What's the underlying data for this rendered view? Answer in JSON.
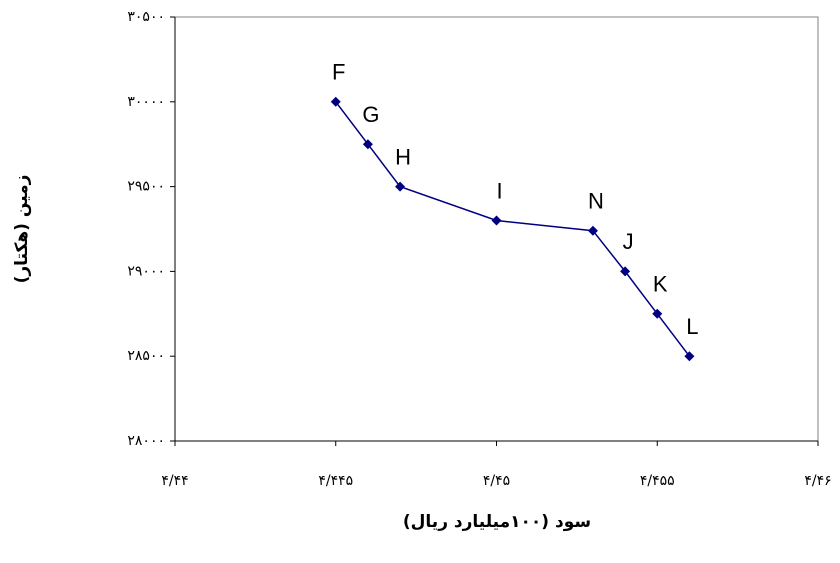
{
  "chart_data": {
    "type": "line",
    "x_label": "سود (۱۰۰میلیارد ریال)",
    "y_label": "زمین (هکتار)",
    "x": [
      4.445,
      4.446,
      4.447,
      4.45,
      4.453,
      4.454,
      4.455,
      4.456
    ],
    "labels": [
      "F",
      "G",
      "H",
      "I",
      "N",
      "J",
      "K",
      "L"
    ],
    "series": [
      {
        "color": "#000080",
        "values": [
          30000,
          29750,
          29500,
          29300,
          29240,
          29000,
          28750,
          28500
        ]
      }
    ],
    "xlim": [
      4.44,
      4.46
    ],
    "xticks": [
      {
        "value": 4.44,
        "label": "۴/۴۴"
      },
      {
        "value": 4.445,
        "label": "۴/۴۴۵"
      },
      {
        "value": 4.45,
        "label": "۴/۴۵"
      },
      {
        "value": 4.455,
        "label": "۴/۴۵۵"
      },
      {
        "value": 4.46,
        "label": "۴/۴۶"
      }
    ],
    "ylim": [
      28000,
      30500
    ],
    "yticks": [
      {
        "value": 28000,
        "label": "۲۸۰۰۰"
      },
      {
        "value": 28500,
        "label": "۲۸۵۰۰"
      },
      {
        "value": 29000,
        "label": "۲۹۰۰۰"
      },
      {
        "value": 29500,
        "label": "۲۹۵۰۰"
      },
      {
        "value": 30000,
        "label": "۳۰۰۰۰"
      },
      {
        "value": 30500,
        "label": "۳۰۵۰۰"
      }
    ],
    "grid": false
  }
}
